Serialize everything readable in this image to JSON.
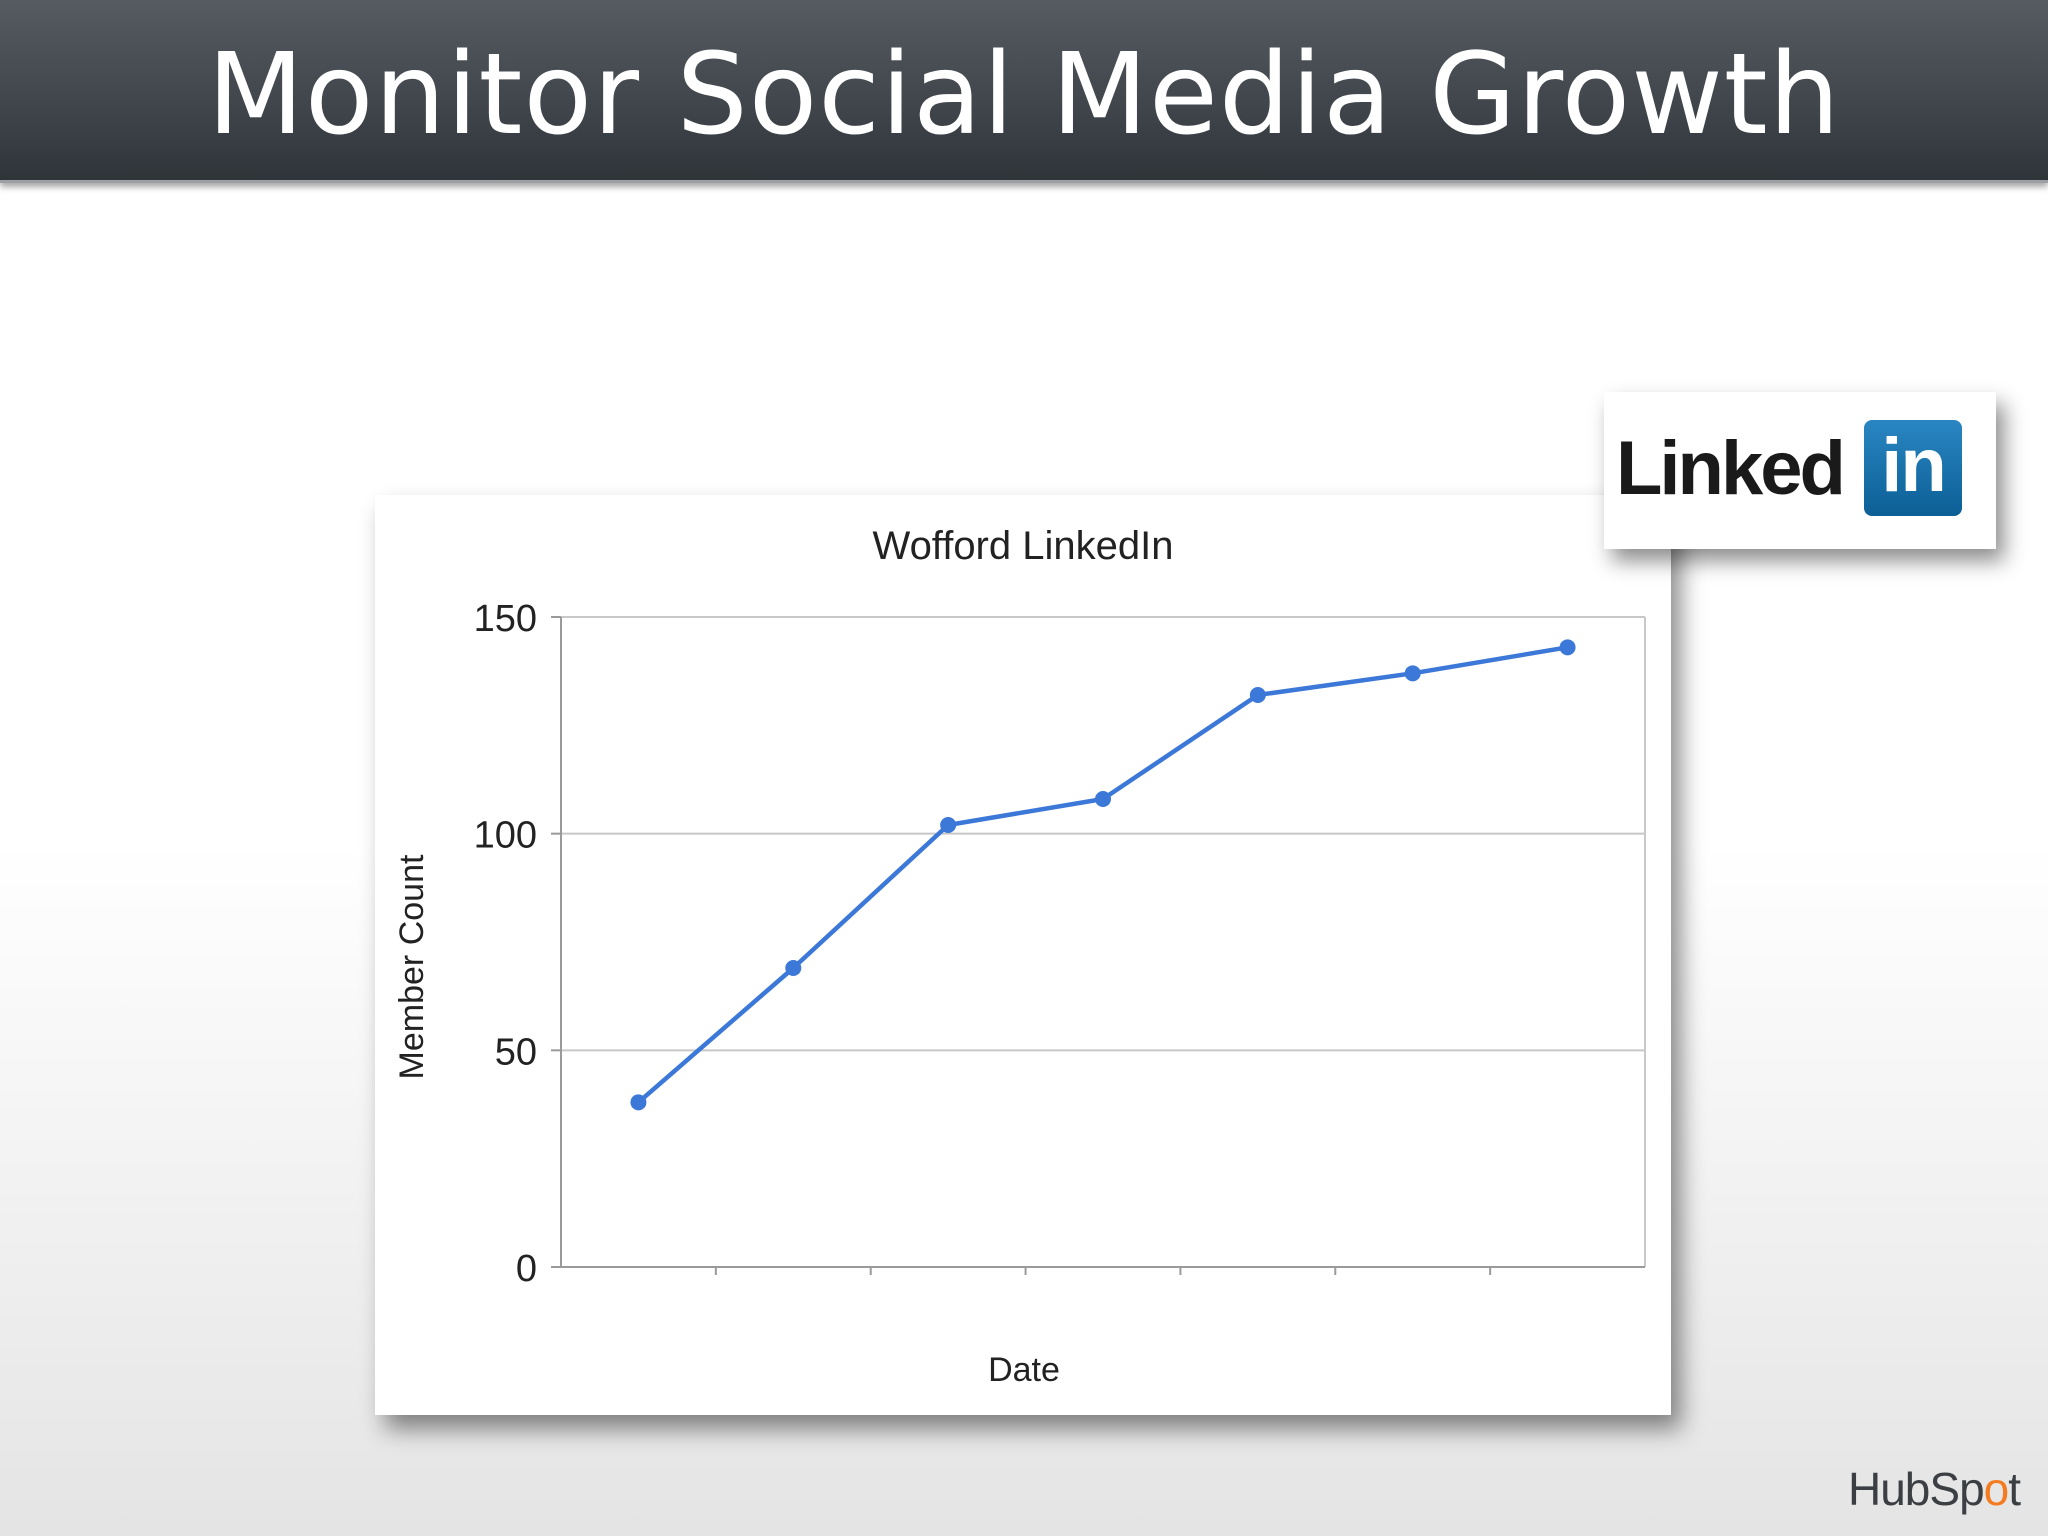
{
  "slide": {
    "title": "Monitor Social Media Growth",
    "logo_text_linked": "Linked",
    "logo_text_in": "in",
    "footer_brand_a": "HubSp",
    "footer_brand_o": "o",
    "footer_brand_b": "t"
  },
  "chart_data": {
    "type": "line",
    "title": "Wofford LinkedIn",
    "xlabel": "Date",
    "ylabel": "Member Count",
    "ylim": [
      0,
      150
    ],
    "yticks": [
      0,
      50,
      100,
      150
    ],
    "x": [
      1,
      2,
      3,
      4,
      5,
      6,
      7
    ],
    "series": [
      {
        "values": [
          38,
          69,
          102,
          108,
          132,
          137,
          143
        ]
      }
    ],
    "grid": true,
    "legend": "none",
    "colors": {
      "line": "#3c78d8",
      "grid": "#c8c8c8",
      "axis": "#9a9a9a",
      "text": "#222222"
    }
  }
}
